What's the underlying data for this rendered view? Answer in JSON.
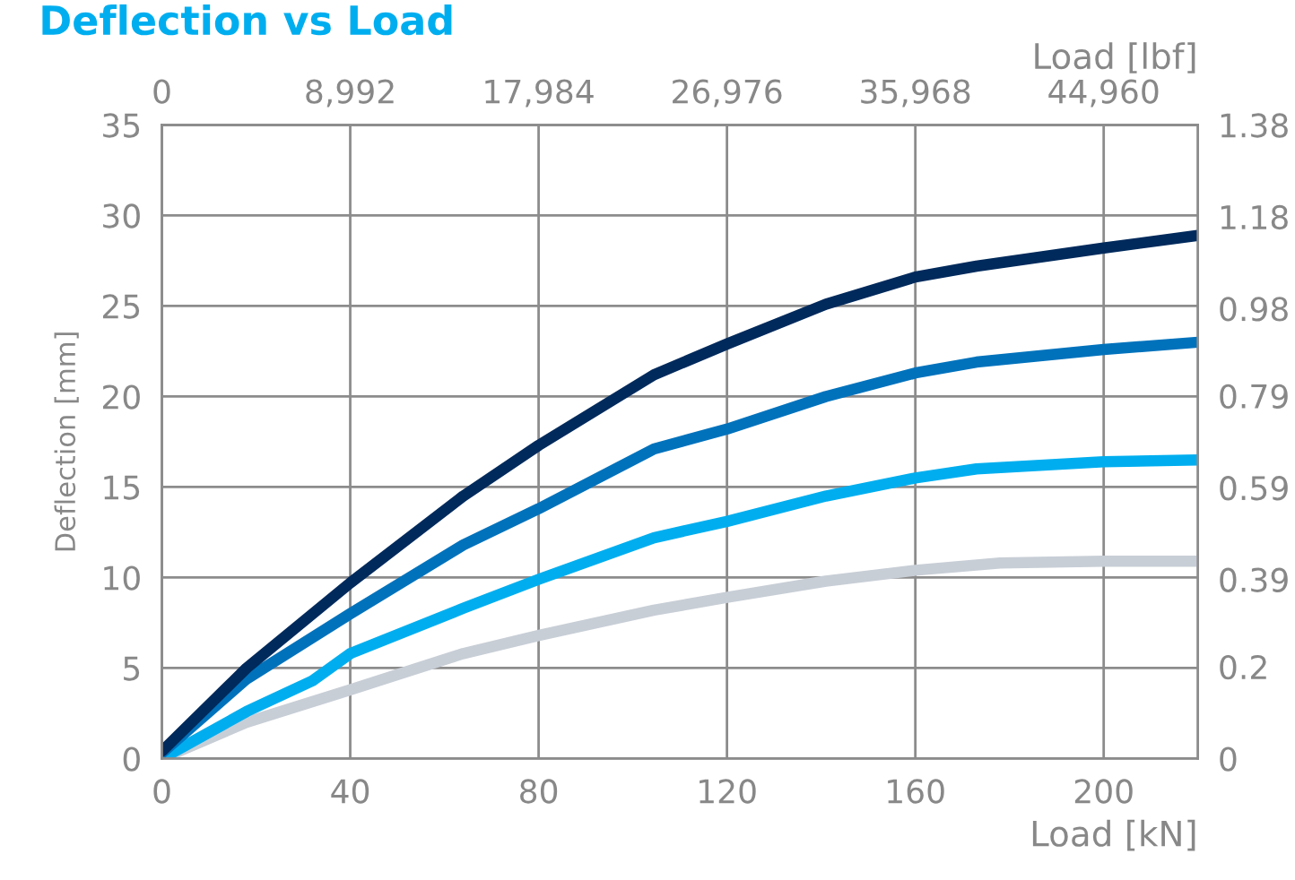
{
  "chart_data": {
    "type": "line",
    "title": "Deflection vs Load",
    "xlabel": "Load [kN]",
    "x2label": "Load [lbf]",
    "ylabel": "Deflection [mm]",
    "xlim": [
      0,
      220
    ],
    "xticks": [
      0,
      40,
      80,
      120,
      160,
      200
    ],
    "x2lim": [
      0,
      49456
    ],
    "x2ticks": [
      {
        "value": 0,
        "label": "0"
      },
      {
        "value": 8992,
        "label": "8,992"
      },
      {
        "value": 17984,
        "label": "17,984"
      },
      {
        "value": 26976,
        "label": "26,976"
      },
      {
        "value": 35968,
        "label": "35,968"
      },
      {
        "value": 44960,
        "label": "44,960"
      }
    ],
    "ylim": [
      0,
      35
    ],
    "yticks": [
      0,
      5,
      10,
      15,
      20,
      25,
      30,
      35
    ],
    "y2lim": [
      0,
      1.38
    ],
    "y2ticks": [
      0,
      0.2,
      0.39,
      0.59,
      0.79,
      0.98,
      1.18,
      1.38
    ],
    "grid": true,
    "legend": false,
    "marker": "none",
    "line_style": "solid",
    "series": [
      {
        "color": "#c8ced6",
        "x": [
          0,
          18,
          40,
          64,
          80,
          104.5,
          120,
          141,
          160,
          178,
          200,
          220
        ],
        "values": [
          0,
          2.0,
          3.8,
          5.8,
          6.8,
          8.2,
          8.9,
          9.8,
          10.4,
          10.8,
          10.9,
          10.9
        ]
      },
      {
        "color": "#00aeef",
        "x": [
          0,
          18,
          32,
          40,
          64,
          80,
          104.5,
          120,
          141,
          160,
          173,
          200,
          220
        ],
        "values": [
          0,
          2.6,
          4.3,
          5.8,
          8.3,
          9.9,
          12.2,
          13.1,
          14.5,
          15.5,
          16.0,
          16.4,
          16.5
        ]
      },
      {
        "color": "#0072bc",
        "x": [
          0,
          18,
          40,
          64,
          80,
          104.5,
          120,
          141,
          160,
          173,
          200,
          220
        ],
        "values": [
          0.3,
          4.4,
          8.0,
          11.8,
          13.8,
          17.1,
          18.2,
          20.0,
          21.3,
          21.9,
          22.6,
          23.0
        ]
      },
      {
        "color": "#002a5c",
        "x": [
          0,
          18,
          40,
          64,
          80,
          104.5,
          120,
          141,
          160,
          173,
          200,
          220
        ],
        "values": [
          0.4,
          5.0,
          9.7,
          14.5,
          17.3,
          21.2,
          22.9,
          25.1,
          26.6,
          27.2,
          28.2,
          28.9
        ]
      }
    ]
  }
}
